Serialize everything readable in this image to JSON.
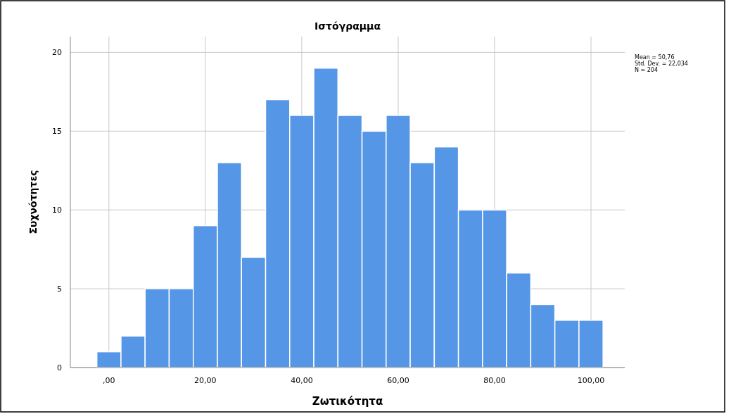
{
  "chart_data": {
    "type": "histogram",
    "title": "Ιστόγραμμα",
    "xlabel": "Ζωτικότητα",
    "ylabel": "Συχνότητες",
    "bins": [
      -2.5,
      2.5,
      7.5,
      12.5,
      17.5,
      22.5,
      27.5,
      32.5,
      37.5,
      42.5,
      47.5,
      52.5,
      57.5,
      62.5,
      67.5,
      72.5,
      77.5,
      82.5,
      87.5,
      92.5,
      97.5,
      102.5
    ],
    "values": [
      1,
      2,
      5,
      5,
      9,
      13,
      7,
      17,
      16,
      19,
      16,
      15,
      16,
      13,
      14,
      10,
      10,
      6,
      4,
      3,
      3
    ],
    "color": "#5596e6",
    "xlim": [
      -8,
      107
    ],
    "xticks": [
      {
        "value": 0,
        "label": ",00"
      },
      {
        "value": 20,
        "label": "20,00"
      },
      {
        "value": 40,
        "label": "40,00"
      },
      {
        "value": 60,
        "label": "60,00"
      },
      {
        "value": 80,
        "label": "80,00"
      },
      {
        "value": 100,
        "label": "100,00"
      }
    ],
    "ylim": [
      0,
      21
    ],
    "yticks": [
      0,
      5,
      10,
      15,
      20
    ],
    "grid": true,
    "annotations": [
      "Mean = 50,76",
      "Std. Dev. = 22,034",
      "N = 204"
    ]
  }
}
